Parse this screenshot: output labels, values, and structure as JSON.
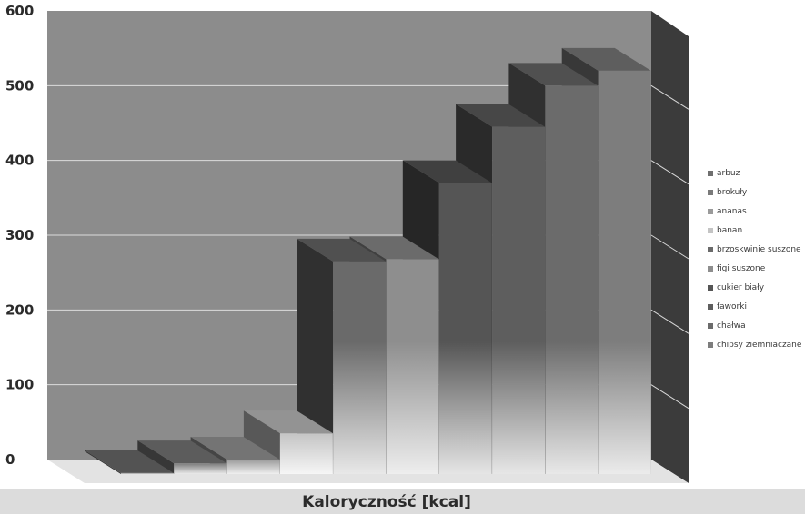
{
  "chart_data": {
    "type": "bar",
    "variant": "3d-stepped",
    "title": "",
    "xlabel": "Kaloryczność [kcal]",
    "ylabel": "",
    "ylim": [
      0,
      600
    ],
    "yticks": [
      "0",
      "100",
      "200",
      "300",
      "400",
      "500",
      "600"
    ],
    "grid": true,
    "legend_position": "right",
    "series": [
      {
        "name": "arbuz",
        "value": -18,
        "color": "#6f6f6f"
      },
      {
        "name": "brokuły",
        "value": -5,
        "color": "#7a7a7a"
      },
      {
        "name": "ananas",
        "value": 0,
        "color": "#9a9a9a"
      },
      {
        "name": "banan",
        "value": 35,
        "color": "#c4c4c4"
      },
      {
        "name": "brzoskwinie suszone",
        "value": 265,
        "color": "#6a6a6a"
      },
      {
        "name": "figi suszone",
        "value": 268,
        "color": "#8e8e8e"
      },
      {
        "name": "cukier biały",
        "value": 370,
        "color": "#555555"
      },
      {
        "name": "faworki",
        "value": 445,
        "color": "#5e5e5e"
      },
      {
        "name": "chałwa",
        "value": 500,
        "color": "#6b6b6b"
      },
      {
        "name": "chipsy ziemniaczane",
        "value": 520,
        "color": "#7d7d7d"
      }
    ]
  },
  "legend": {
    "items": [
      "arbuz",
      "brokuły",
      "ananas",
      "banan",
      "brzoskwinie suszone",
      "figi suszone",
      "cukier biały",
      "faworki",
      "chałwa",
      "chipsy ziemniaczane"
    ]
  }
}
